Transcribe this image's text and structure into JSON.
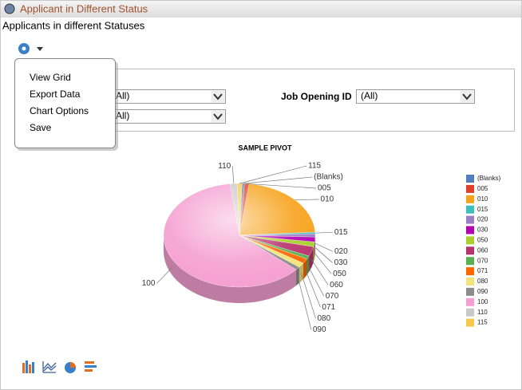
{
  "header": {
    "title": "Applicant in Different Status"
  },
  "subtitle": "Applicants in different Statuses",
  "menu": {
    "items": [
      "View Grid",
      "Export Data",
      "Chart Options",
      "Save"
    ]
  },
  "filters": [
    {
      "value": "(All)"
    },
    {
      "value": "(All)"
    },
    {
      "label": "Job Opening ID",
      "value": "(All)"
    }
  ],
  "chart_data": {
    "type": "pie",
    "title": "SAMPLE PIVOT",
    "categories": [
      "(Blanks)",
      "005",
      "010",
      "015",
      "020",
      "030",
      "050",
      "060",
      "070",
      "071",
      "080",
      "090",
      "100",
      "110",
      "115"
    ],
    "values": [
      0.5,
      1,
      22,
      0.5,
      1,
      1.5,
      1.5,
      3,
      1,
      1.5,
      1.5,
      1,
      61.5,
      1.5,
      1
    ],
    "colors": [
      "#4f7fc0",
      "#e0402a",
      "#f7a21b",
      "#3bbfbf",
      "#9a7fc4",
      "#b400b4",
      "#a9cf2a",
      "#b8326e",
      "#59b050",
      "#ff6600",
      "#f3e37a",
      "#8c8c8c",
      "#f59fd0",
      "#c8c8c8",
      "#f7c84a"
    ],
    "legend": "right"
  }
}
